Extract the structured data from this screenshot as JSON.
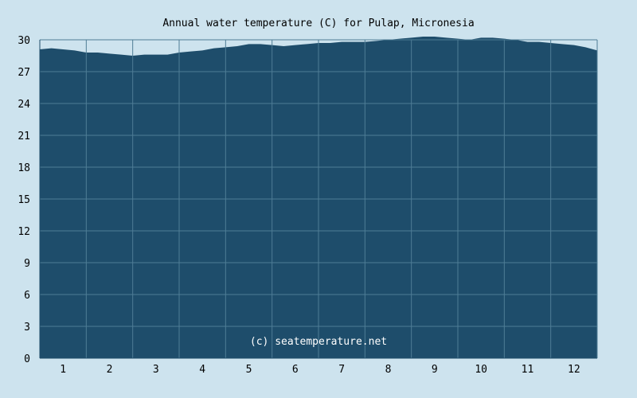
{
  "chart_data": {
    "type": "area",
    "title": "Annual water temperature (C) for Pulap, Micronesia",
    "xlabel": "",
    "ylabel": "",
    "x_ticks": [
      "1",
      "2",
      "3",
      "4",
      "5",
      "6",
      "7",
      "8",
      "9",
      "10",
      "11",
      "12"
    ],
    "y_ticks": [
      "0",
      "3",
      "6",
      "9",
      "12",
      "15",
      "18",
      "21",
      "24",
      "27",
      "30"
    ],
    "ylim": [
      0,
      30
    ],
    "xlim": [
      0.5,
      12.5
    ],
    "grid": true,
    "watermark": "(c) seatemperature.net",
    "series": [
      {
        "x": [
          0.5,
          0.75,
          1.0,
          1.25,
          1.5,
          1.75,
          2.0,
          2.25,
          2.5,
          2.75,
          3.0,
          3.25,
          3.5,
          3.75,
          4.0,
          4.25,
          4.5,
          4.75,
          5.0,
          5.25,
          5.5,
          5.75,
          6.0,
          6.25,
          6.5,
          6.75,
          7.0,
          7.25,
          7.5,
          7.75,
          8.0,
          8.25,
          8.5,
          8.75,
          9.0,
          9.25,
          9.5,
          9.75,
          10.0,
          10.25,
          10.5,
          10.75,
          11.0,
          11.25,
          11.5,
          11.75,
          12.0,
          12.25,
          12.5
        ],
        "y": [
          29.1,
          29.2,
          29.1,
          29.0,
          28.8,
          28.8,
          28.7,
          28.6,
          28.5,
          28.6,
          28.6,
          28.6,
          28.8,
          28.9,
          29.0,
          29.2,
          29.3,
          29.4,
          29.6,
          29.6,
          29.5,
          29.4,
          29.5,
          29.6,
          29.7,
          29.7,
          29.8,
          29.8,
          29.8,
          29.9,
          30.0,
          30.1,
          30.2,
          30.3,
          30.3,
          30.2,
          30.1,
          30.0,
          30.2,
          30.2,
          30.1,
          30.0,
          29.8,
          29.8,
          29.7,
          29.6,
          29.5,
          29.3,
          29.0
        ],
        "color": "#1e4d6b"
      }
    ],
    "colors": {
      "background": "#cde3ee",
      "area": "#1e4d6b",
      "grid": "#4f7d96",
      "axis": "#1e4d6b"
    }
  }
}
